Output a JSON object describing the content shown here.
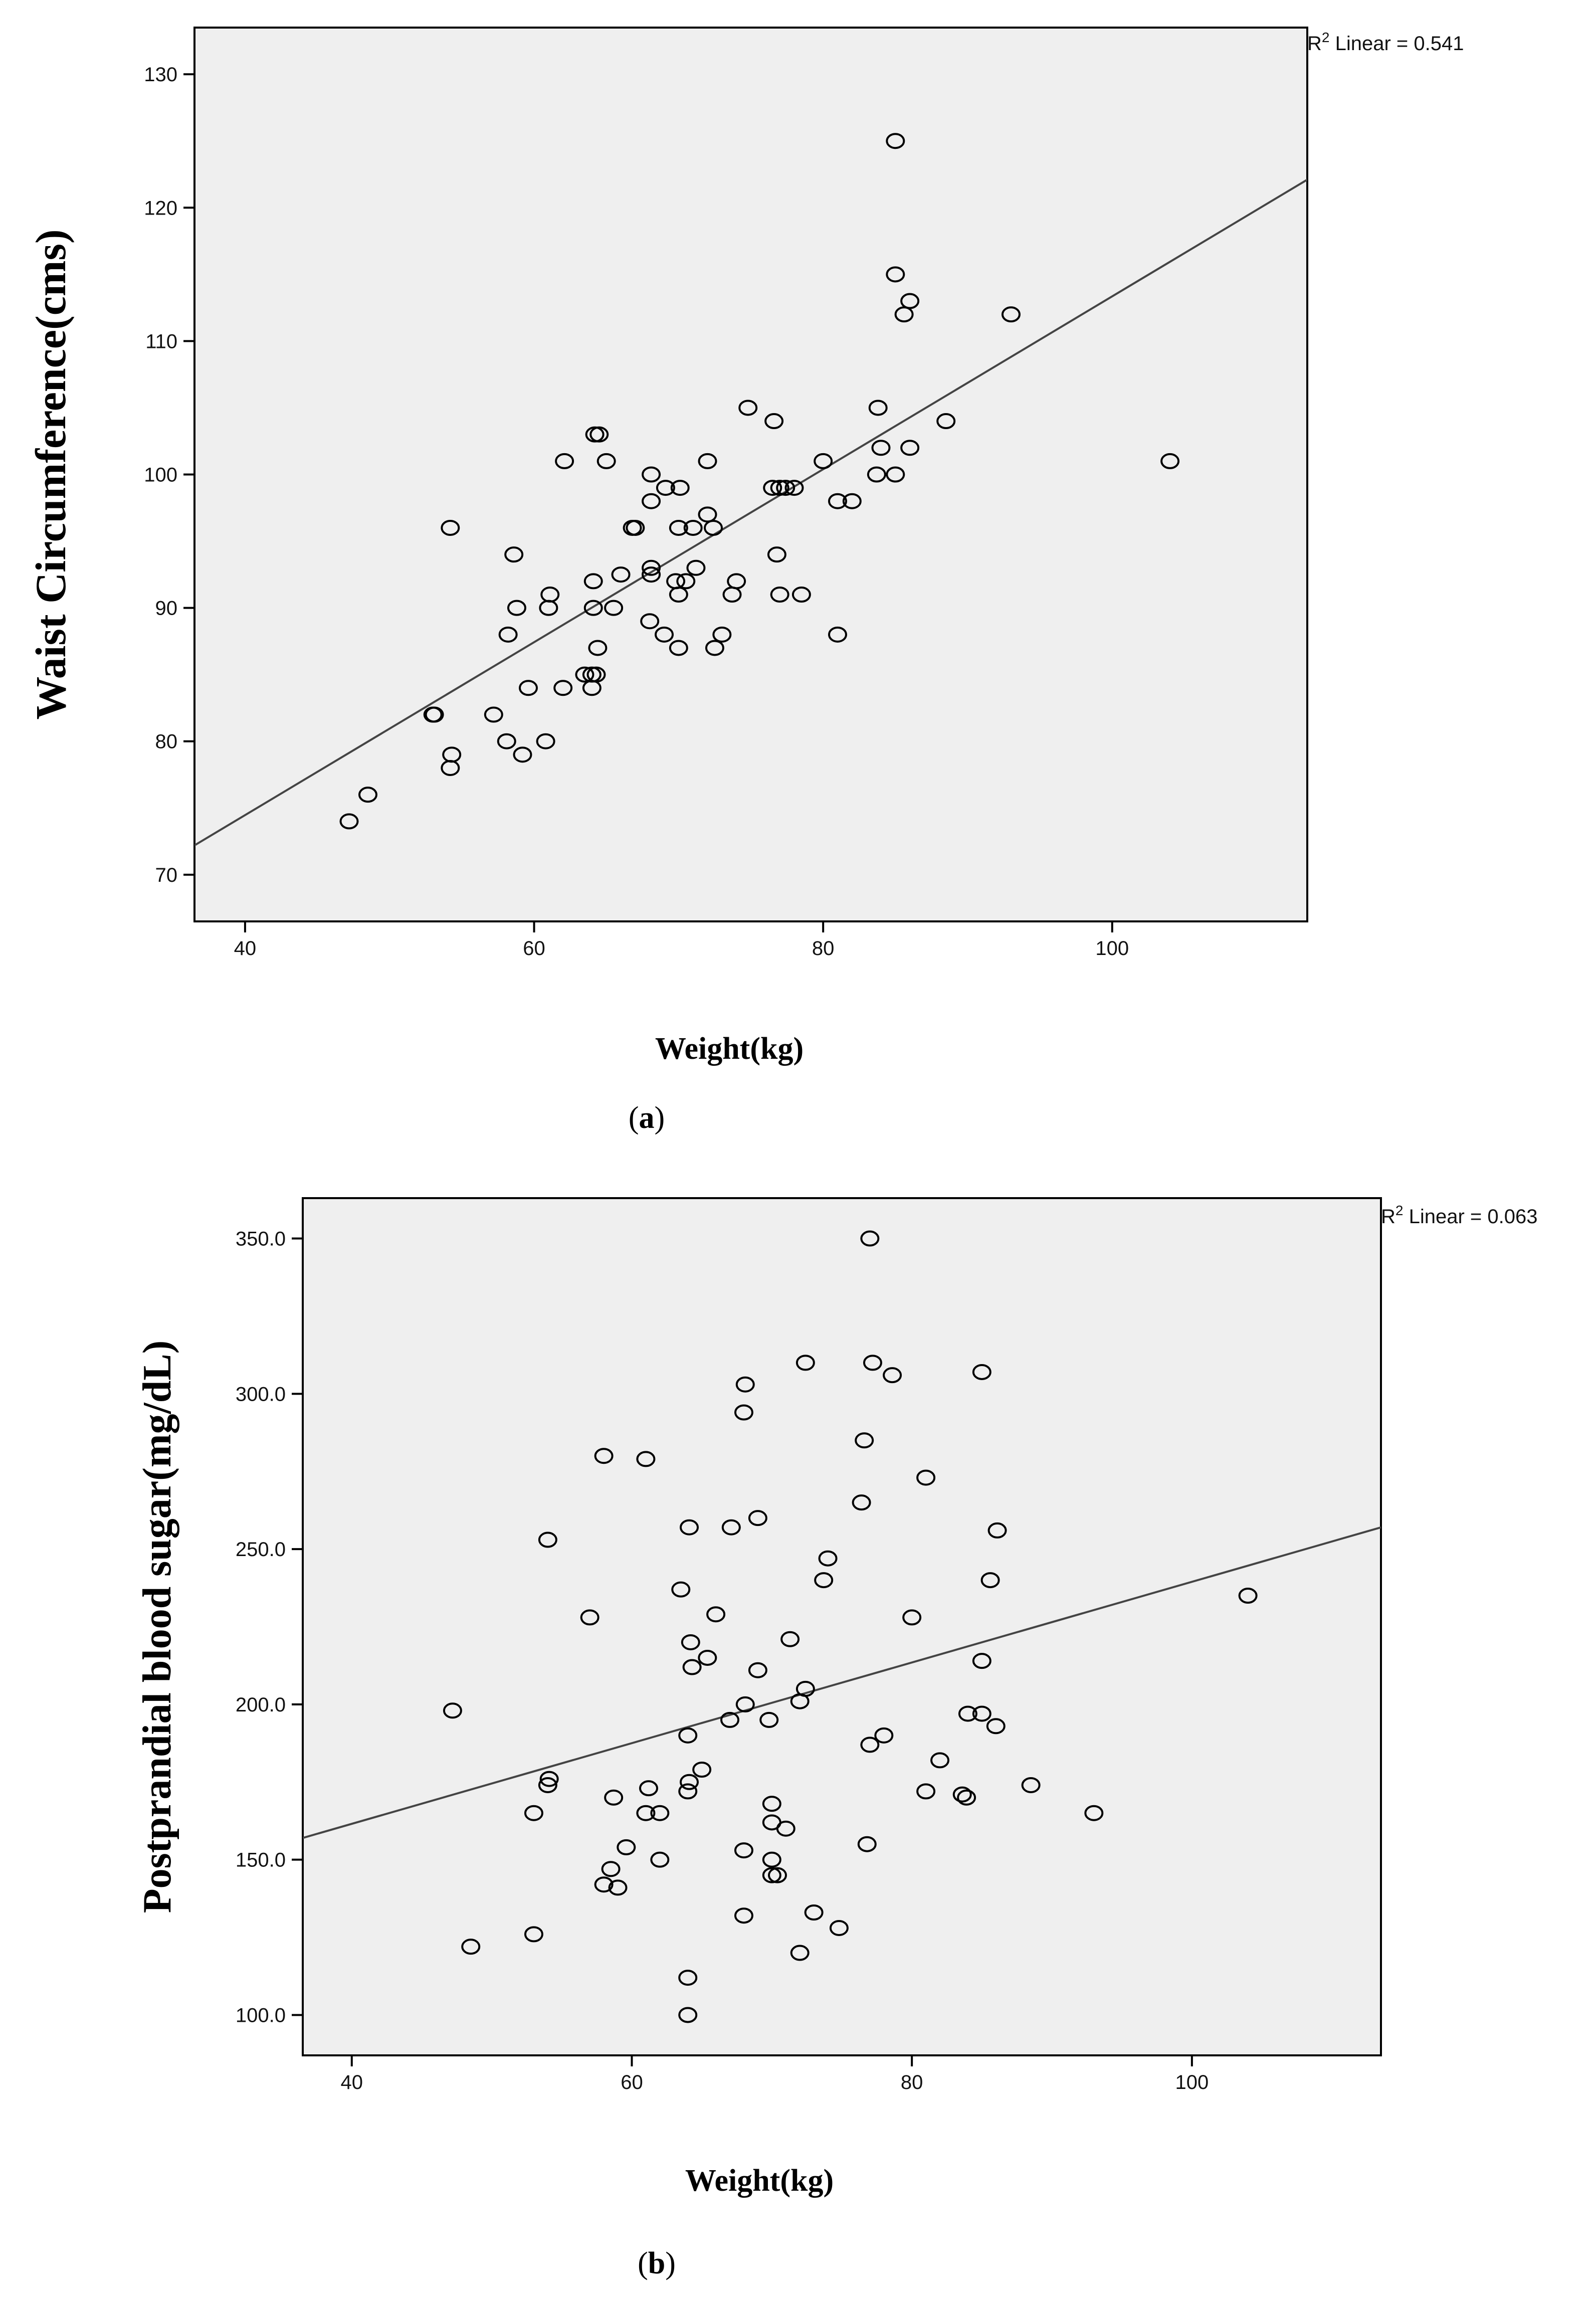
{
  "chart_data": [
    {
      "type": "scatter",
      "panel": "a",
      "caption_open": "(",
      "caption_letter": "a",
      "caption_close": ")",
      "xlabel": "Weight(kg)",
      "ylabel": "Waist Circumference(cms)",
      "xlim": [
        36.5,
        113.5
      ],
      "ylim": [
        66.5,
        133.5
      ],
      "xticks": [
        40,
        60,
        80,
        100
      ],
      "yticks": [
        70,
        80,
        90,
        100,
        110,
        120,
        130
      ],
      "xtick_labels": [
        "40",
        "60",
        "80",
        "100"
      ],
      "ytick_labels": [
        "70",
        "80",
        "90",
        "100",
        "110",
        "120",
        "130"
      ],
      "r2_prefix": "R",
      "r2_sup": "2",
      "r2_text": " Linear = 0.541",
      "fit_line": {
        "x": [
          36.5,
          113.5
        ],
        "y": [
          72.2,
          122.1
        ]
      },
      "points": [
        [
          47.2,
          74
        ],
        [
          48.5,
          76
        ],
        [
          53,
          82
        ],
        [
          53.1,
          82
        ],
        [
          54.2,
          78
        ],
        [
          54.3,
          79
        ],
        [
          54.2,
          96
        ],
        [
          57.2,
          82
        ],
        [
          58.1,
          80
        ],
        [
          58.2,
          88
        ],
        [
          58.6,
          94
        ],
        [
          58.8,
          90
        ],
        [
          59.2,
          79
        ],
        [
          59.6,
          84
        ],
        [
          60.8,
          80
        ],
        [
          61,
          90
        ],
        [
          61.1,
          91
        ],
        [
          62,
          84
        ],
        [
          62.1,
          101
        ],
        [
          63.5,
          85
        ],
        [
          64,
          84
        ],
        [
          64,
          85
        ],
        [
          64.1,
          90
        ],
        [
          64.1,
          92
        ],
        [
          64.3,
          85
        ],
        [
          64.4,
          87
        ],
        [
          64.2,
          103
        ],
        [
          64.5,
          103
        ],
        [
          65,
          101
        ],
        [
          65.5,
          90
        ],
        [
          66,
          92.5
        ],
        [
          66.8,
          96
        ],
        [
          67,
          96
        ],
        [
          68,
          89
        ],
        [
          68.1,
          92.5
        ],
        [
          68.1,
          93
        ],
        [
          68.1,
          98
        ],
        [
          68.1,
          100
        ],
        [
          69,
          88
        ],
        [
          69.1,
          99
        ],
        [
          70,
          87
        ],
        [
          70,
          91
        ],
        [
          69.8,
          92
        ],
        [
          70,
          96
        ],
        [
          70.1,
          99
        ],
        [
          70.5,
          92
        ],
        [
          71,
          96
        ],
        [
          71.2,
          93
        ],
        [
          72,
          97
        ],
        [
          72,
          101
        ],
        [
          72.5,
          87
        ],
        [
          72.4,
          96
        ],
        [
          73,
          88
        ],
        [
          73.7,
          91
        ],
        [
          74,
          92
        ],
        [
          74.8,
          105
        ],
        [
          76.5,
          99
        ],
        [
          76.6,
          104
        ],
        [
          76.8,
          94
        ],
        [
          77,
          91
        ],
        [
          77,
          99
        ],
        [
          77.4,
          99
        ],
        [
          78,
          99
        ],
        [
          78.5,
          91
        ],
        [
          80,
          101
        ],
        [
          81,
          88
        ],
        [
          81,
          98
        ],
        [
          82,
          98
        ],
        [
          83.7,
          100
        ],
        [
          83.8,
          105
        ],
        [
          84,
          102
        ],
        [
          85,
          100
        ],
        [
          85,
          115
        ],
        [
          85,
          125
        ],
        [
          85.6,
          112
        ],
        [
          86,
          113
        ],
        [
          86,
          102
        ],
        [
          88.5,
          104
        ],
        [
          93,
          112
        ],
        [
          104,
          101
        ]
      ]
    },
    {
      "type": "scatter",
      "panel": "b",
      "caption_open": "(",
      "caption_letter": "b",
      "caption_close": ")",
      "xlabel": "Weight(kg)",
      "ylabel": "Postprandial blood sugar(mg/dL)",
      "xlim": [
        36.5,
        113.5
      ],
      "ylim": [
        87,
        363
      ],
      "xticks": [
        40,
        60,
        80,
        100
      ],
      "yticks": [
        100,
        150,
        200,
        250,
        300,
        350
      ],
      "xtick_labels": [
        "40",
        "60",
        "80",
        "100"
      ],
      "ytick_labels": [
        "100.0",
        "150.0",
        "200.0",
        "250.0",
        "300.0",
        "350.0"
      ],
      "r2_prefix": "R",
      "r2_sup": "2",
      "r2_text": " Linear = 0.063",
      "fit_line": {
        "x": [
          36.5,
          113.5
        ],
        "y": [
          157,
          257
        ]
      },
      "points": [
        [
          47.2,
          198
        ],
        [
          48.5,
          122
        ],
        [
          53,
          126
        ],
        [
          53,
          165
        ],
        [
          54,
          174
        ],
        [
          54.1,
          176
        ],
        [
          54,
          253
        ],
        [
          57,
          228
        ],
        [
          58,
          142
        ],
        [
          58,
          280
        ],
        [
          58.5,
          147
        ],
        [
          58.7,
          170
        ],
        [
          59,
          141
        ],
        [
          59.6,
          154
        ],
        [
          61,
          165
        ],
        [
          61.2,
          173
        ],
        [
          61,
          279
        ],
        [
          62,
          150
        ],
        [
          62,
          165
        ],
        [
          63.5,
          237
        ],
        [
          64,
          100
        ],
        [
          64,
          112
        ],
        [
          64,
          172
        ],
        [
          64.1,
          175
        ],
        [
          64,
          190
        ],
        [
          64.2,
          220
        ],
        [
          64.1,
          257
        ],
        [
          64.3,
          212
        ],
        [
          65,
          179
        ],
        [
          65.4,
          215
        ],
        [
          66,
          229
        ],
        [
          67,
          195
        ],
        [
          67.1,
          257
        ],
        [
          68,
          132
        ],
        [
          68,
          153
        ],
        [
          68.1,
          200
        ],
        [
          68,
          294
        ],
        [
          68.1,
          303
        ],
        [
          69,
          260
        ],
        [
          69,
          211
        ],
        [
          69.8,
          195
        ],
        [
          70,
          145
        ],
        [
          70,
          150
        ],
        [
          70,
          162
        ],
        [
          70,
          168
        ],
        [
          70.4,
          145
        ],
        [
          71,
          160
        ],
        [
          71.3,
          221
        ],
        [
          72,
          120
        ],
        [
          72,
          201
        ],
        [
          72.4,
          205
        ],
        [
          72.4,
          310
        ],
        [
          73,
          133
        ],
        [
          73.7,
          240
        ],
        [
          74,
          247
        ],
        [
          74.8,
          128
        ],
        [
          76.4,
          265
        ],
        [
          76.6,
          285
        ],
        [
          76.8,
          155
        ],
        [
          77,
          187
        ],
        [
          77,
          350
        ],
        [
          77.2,
          310
        ],
        [
          78,
          190
        ],
        [
          78.6,
          306
        ],
        [
          80,
          228
        ],
        [
          81,
          172
        ],
        [
          81,
          273
        ],
        [
          82,
          182
        ],
        [
          83.6,
          171
        ],
        [
          83.9,
          170
        ],
        [
          84,
          197
        ],
        [
          85,
          197
        ],
        [
          85,
          214
        ],
        [
          85,
          307
        ],
        [
          85.6,
          240
        ],
        [
          86,
          193
        ],
        [
          86.1,
          256
        ],
        [
          88.5,
          174
        ],
        [
          93,
          165
        ],
        [
          104,
          235
        ]
      ]
    }
  ]
}
